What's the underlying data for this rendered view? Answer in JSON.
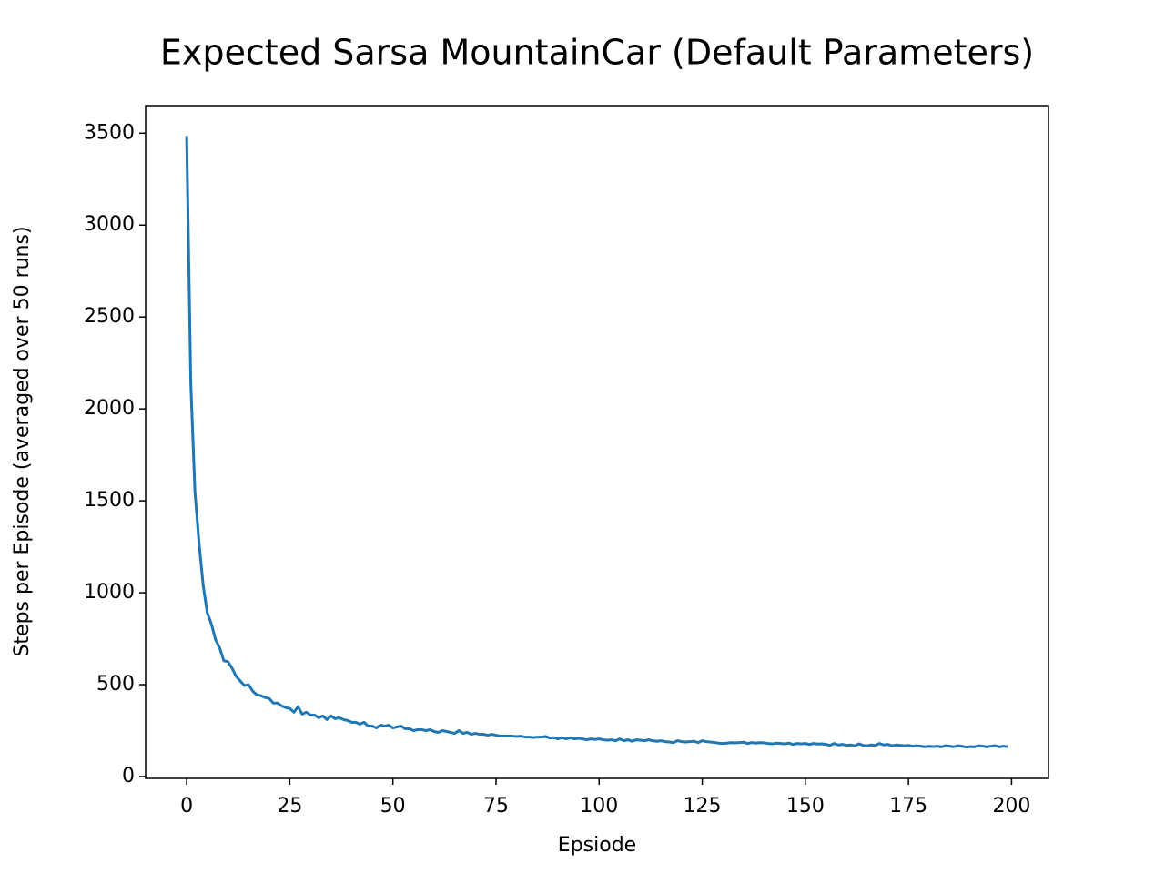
{
  "chart_data": {
    "type": "line",
    "title": "Expected Sarsa MountainCar (Default Parameters)",
    "x_label": "Epsiode",
    "y_label": "Steps per Episode (averaged over 50 runs)",
    "xlim": [
      -9.95,
      208.95
    ],
    "ylim": [
      -10,
      3650
    ],
    "xticks": [
      0,
      25,
      50,
      75,
      100,
      125,
      150,
      175,
      200
    ],
    "yticks": [
      0,
      500,
      1000,
      1500,
      2000,
      2500,
      3000,
      3500
    ],
    "grid": false,
    "x": [
      0,
      1,
      2,
      3,
      4,
      5,
      6,
      7,
      8,
      9,
      10,
      11,
      12,
      13,
      14,
      15,
      16,
      17,
      18,
      19,
      20,
      21,
      22,
      23,
      24,
      25,
      26,
      27,
      28,
      29,
      30,
      31,
      32,
      33,
      34,
      35,
      36,
      37,
      38,
      39,
      40,
      41,
      42,
      43,
      44,
      45,
      46,
      47,
      48,
      49,
      50,
      51,
      52,
      53,
      54,
      55,
      56,
      57,
      58,
      59,
      60,
      61,
      62,
      63,
      64,
      65,
      66,
      67,
      68,
      69,
      70,
      71,
      72,
      73,
      74,
      75,
      76,
      77,
      78,
      79,
      80,
      81,
      82,
      83,
      84,
      85,
      86,
      87,
      88,
      89,
      90,
      91,
      92,
      93,
      94,
      95,
      96,
      97,
      98,
      99,
      100,
      101,
      102,
      103,
      104,
      105,
      106,
      107,
      108,
      109,
      110,
      111,
      112,
      113,
      114,
      115,
      116,
      117,
      118,
      119,
      120,
      121,
      122,
      123,
      124,
      125,
      126,
      127,
      128,
      129,
      130,
      131,
      132,
      133,
      134,
      135,
      136,
      137,
      138,
      139,
      140,
      141,
      142,
      143,
      144,
      145,
      146,
      147,
      148,
      149,
      150,
      151,
      152,
      153,
      154,
      155,
      156,
      157,
      158,
      159,
      160,
      161,
      162,
      163,
      164,
      165,
      166,
      167,
      168,
      169,
      170,
      171,
      172,
      173,
      174,
      175,
      176,
      177,
      178,
      179,
      180,
      181,
      182,
      183,
      184,
      185,
      186,
      187,
      188,
      189,
      190,
      191,
      192,
      193,
      194,
      195,
      196,
      197,
      198,
      199
    ],
    "series": [
      {
        "color": "#1f77b4",
        "values": [
          3485,
          2140,
          1550,
          1270,
          1040,
          890,
          830,
          745,
          700,
          630,
          625,
          590,
          545,
          520,
          495,
          500,
          465,
          445,
          440,
          430,
          425,
          400,
          400,
          385,
          375,
          370,
          350,
          380,
          340,
          350,
          335,
          335,
          320,
          330,
          310,
          330,
          315,
          320,
          310,
          305,
          295,
          295,
          285,
          295,
          275,
          275,
          265,
          280,
          275,
          280,
          265,
          270,
          275,
          260,
          260,
          250,
          255,
          255,
          250,
          255,
          245,
          240,
          250,
          245,
          240,
          235,
          250,
          235,
          240,
          230,
          235,
          230,
          230,
          225,
          230,
          225,
          220,
          220,
          220,
          220,
          218,
          220,
          215,
          215,
          212,
          215,
          215,
          218,
          210,
          212,
          205,
          212,
          205,
          210,
          205,
          208,
          205,
          200,
          205,
          202,
          205,
          200,
          198,
          200,
          195,
          205,
          195,
          200,
          192,
          200,
          198,
          195,
          200,
          195,
          192,
          195,
          190,
          188,
          185,
          195,
          190,
          188,
          190,
          192,
          185,
          195,
          190,
          188,
          185,
          182,
          180,
          182,
          185,
          183,
          185,
          187,
          180,
          185,
          182,
          185,
          183,
          180,
          178,
          182,
          180,
          178,
          182,
          175,
          180,
          178,
          180,
          175,
          180,
          177,
          178,
          175,
          170,
          180,
          172,
          175,
          170,
          172,
          168,
          178,
          170,
          168,
          172,
          170,
          180,
          172,
          175,
          168,
          172,
          170,
          168,
          170,
          165,
          168,
          165,
          162,
          165,
          163,
          165,
          162,
          168,
          165,
          162,
          168,
          165,
          160,
          163,
          162,
          168,
          165,
          162,
          165,
          168,
          162,
          165,
          163
        ]
      }
    ]
  }
}
